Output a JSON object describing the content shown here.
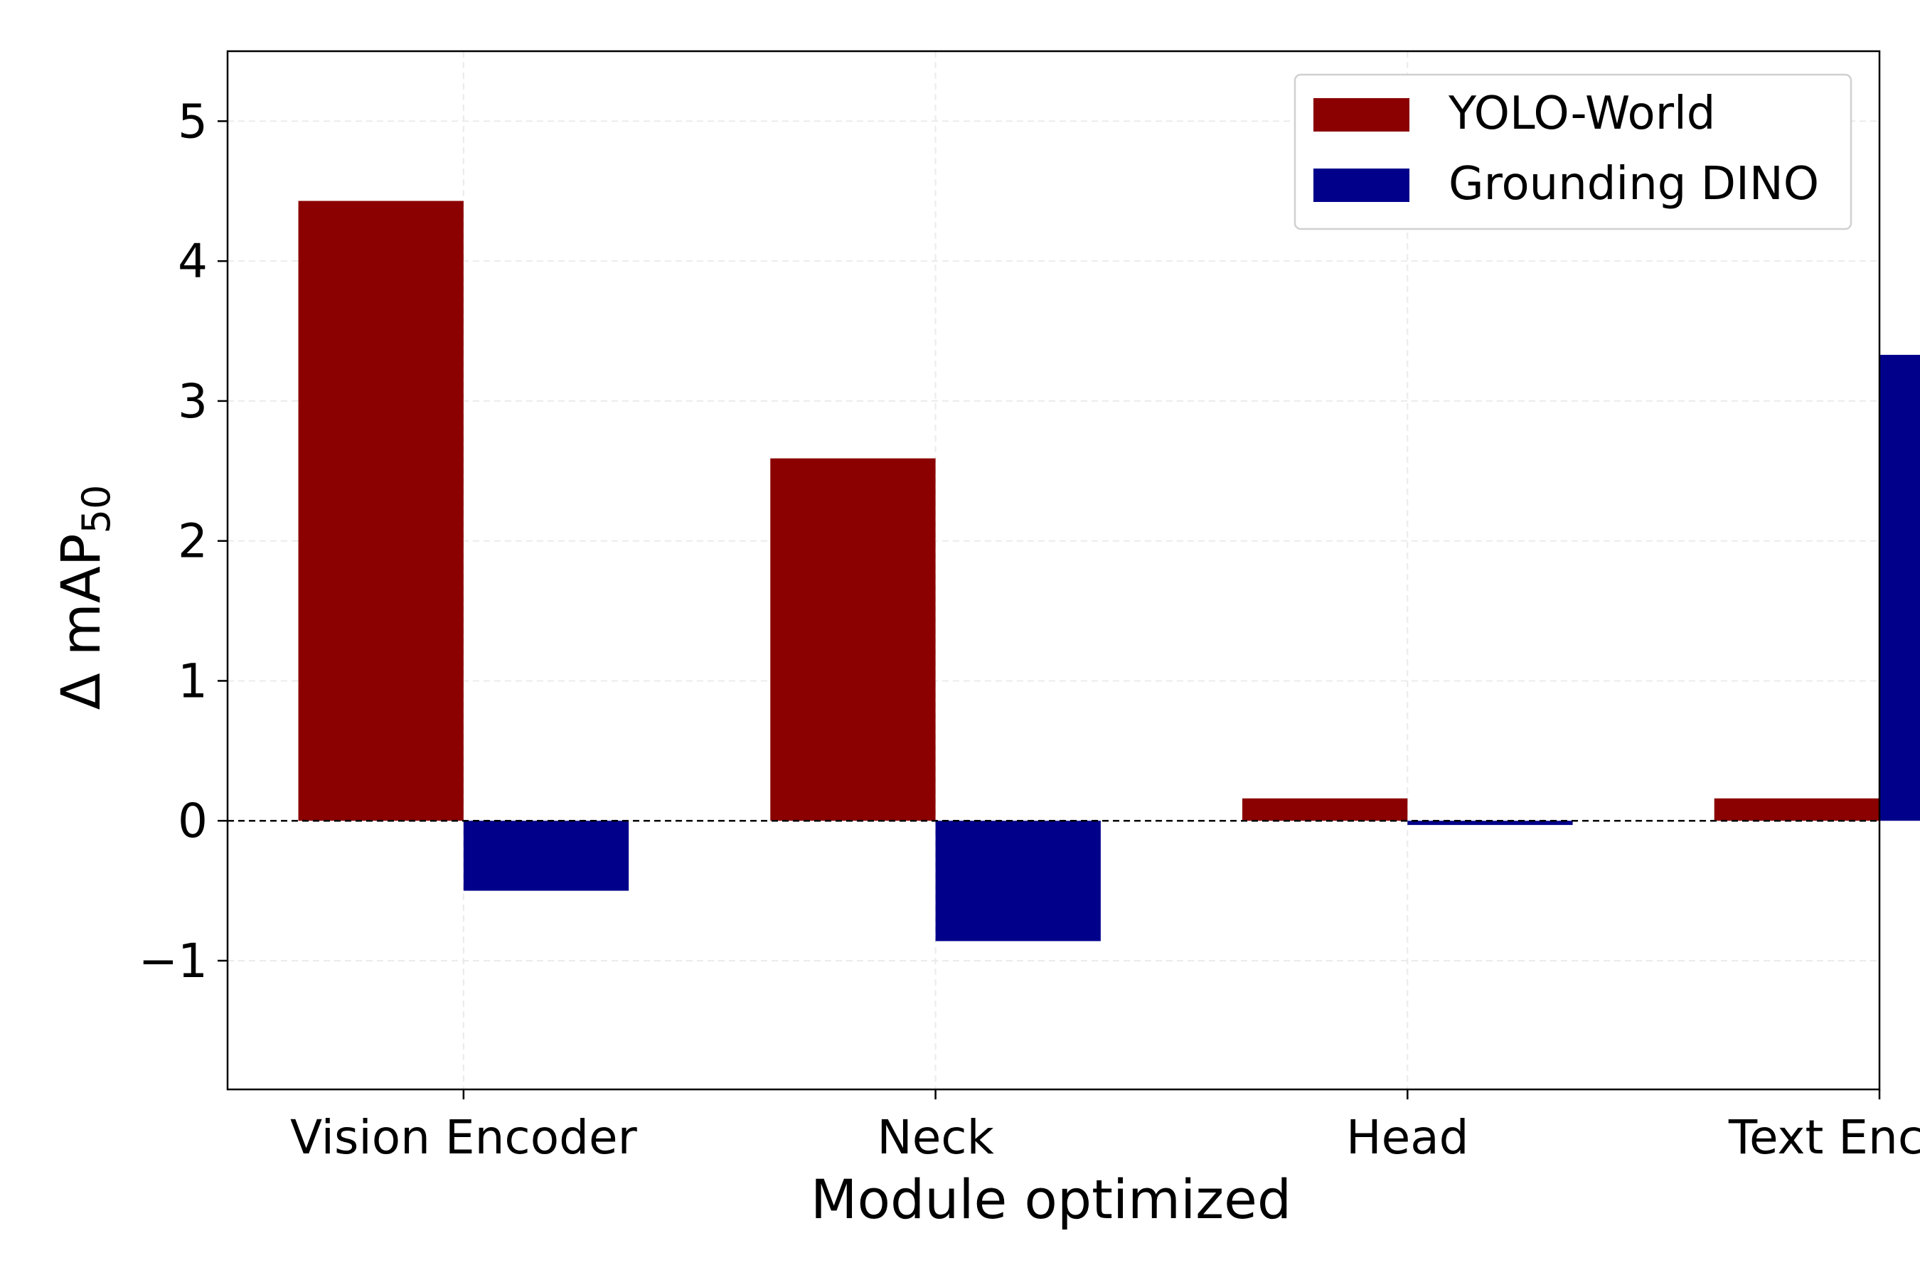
{
  "chart_data": {
    "type": "bar",
    "categories": [
      "Vision Encoder",
      "Neck",
      "Head",
      "Text Encoder"
    ],
    "series": [
      {
        "name": "YOLO-World",
        "color": "#8b0000",
        "values": [
          4.43,
          2.59,
          0.16,
          0.16
        ]
      },
      {
        "name": "Grounding DINO",
        "color": "#00008b",
        "values": [
          -0.5,
          -0.86,
          -0.03,
          3.33
        ]
      }
    ],
    "xlabel": "Module optimized",
    "ylabel": {
      "prefix": "Δ mAP",
      "subscript": "50"
    },
    "ylim": [
      -1.92,
      5.5
    ],
    "yticks": [
      -1,
      0,
      1,
      2,
      3,
      4,
      5
    ],
    "ytick_labels": [
      "−1",
      "0",
      "1",
      "2",
      "3",
      "4",
      "5"
    ],
    "grid": true,
    "zero_line": "dashed",
    "legend_placement": "top-right"
  }
}
